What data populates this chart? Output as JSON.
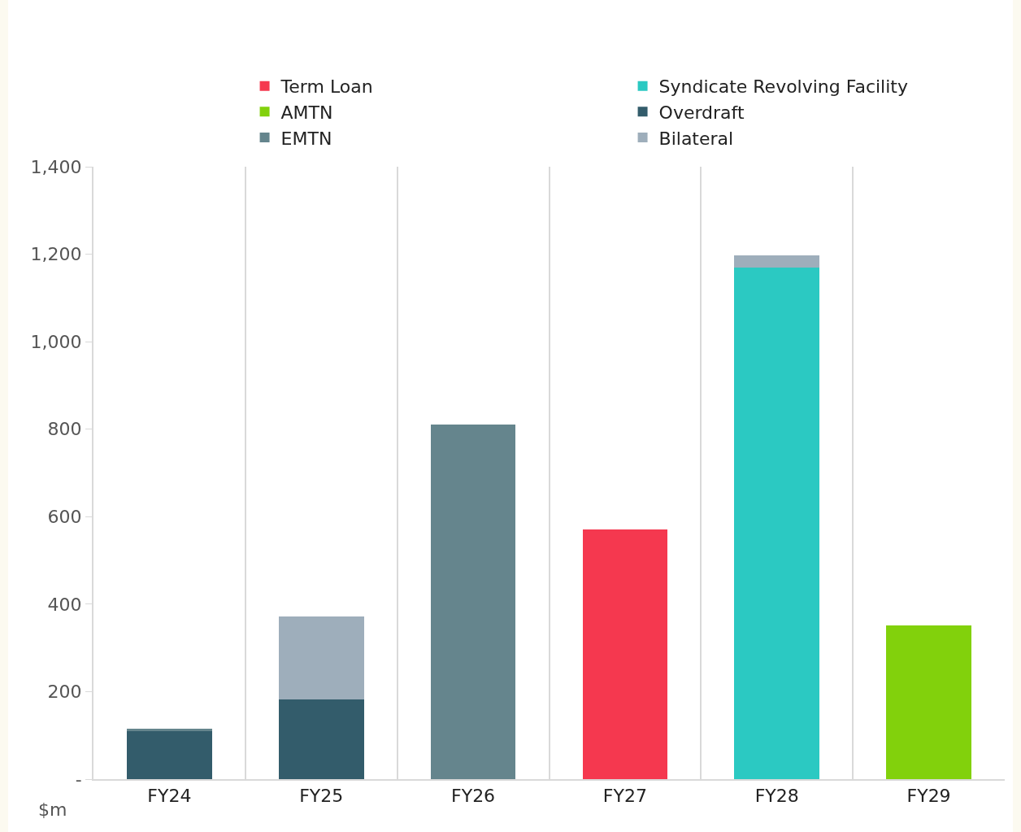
{
  "chart_data": {
    "type": "bar",
    "stacked": true,
    "ylabel": "$m",
    "categories": [
      "FY24",
      "FY25",
      "FY26",
      "FY27",
      "FY28",
      "FY29"
    ],
    "series": [
      {
        "name": "Term Loan",
        "color": "#f5384f",
        "values": [
          null,
          null,
          null,
          571,
          null,
          null
        ]
      },
      {
        "name": "Syndicate Revolving Facility",
        "color": "#2bc9c2",
        "values": [
          null,
          null,
          null,
          null,
          1170,
          null
        ]
      },
      {
        "name": "AMTN",
        "color": "#82d10c",
        "values": [
          null,
          null,
          null,
          null,
          null,
          351
        ]
      },
      {
        "name": "Overdraft",
        "color": "#335c6b",
        "values": [
          110,
          183,
          null,
          null,
          null,
          null
        ]
      },
      {
        "name": "EMTN",
        "color": "#65858d",
        "values": [
          5,
          null,
          810,
          null,
          null,
          null
        ]
      },
      {
        "name": "Bilateral",
        "color": "#9eaebb",
        "values": [
          null,
          188,
          null,
          null,
          28,
          null
        ]
      }
    ],
    "ylim": [
      0,
      1400
    ],
    "yticks": [
      {
        "value": 0,
        "label": "-"
      },
      {
        "value": 200,
        "label": "200"
      },
      {
        "value": 400,
        "label": "400"
      },
      {
        "value": 600,
        "label": "600"
      },
      {
        "value": 800,
        "label": "800"
      },
      {
        "value": 1000,
        "label": "1,000"
      },
      {
        "value": 1200,
        "label": "1,200"
      },
      {
        "value": 1400,
        "label": "1,400"
      }
    ],
    "grid": "x",
    "legend": "top"
  }
}
